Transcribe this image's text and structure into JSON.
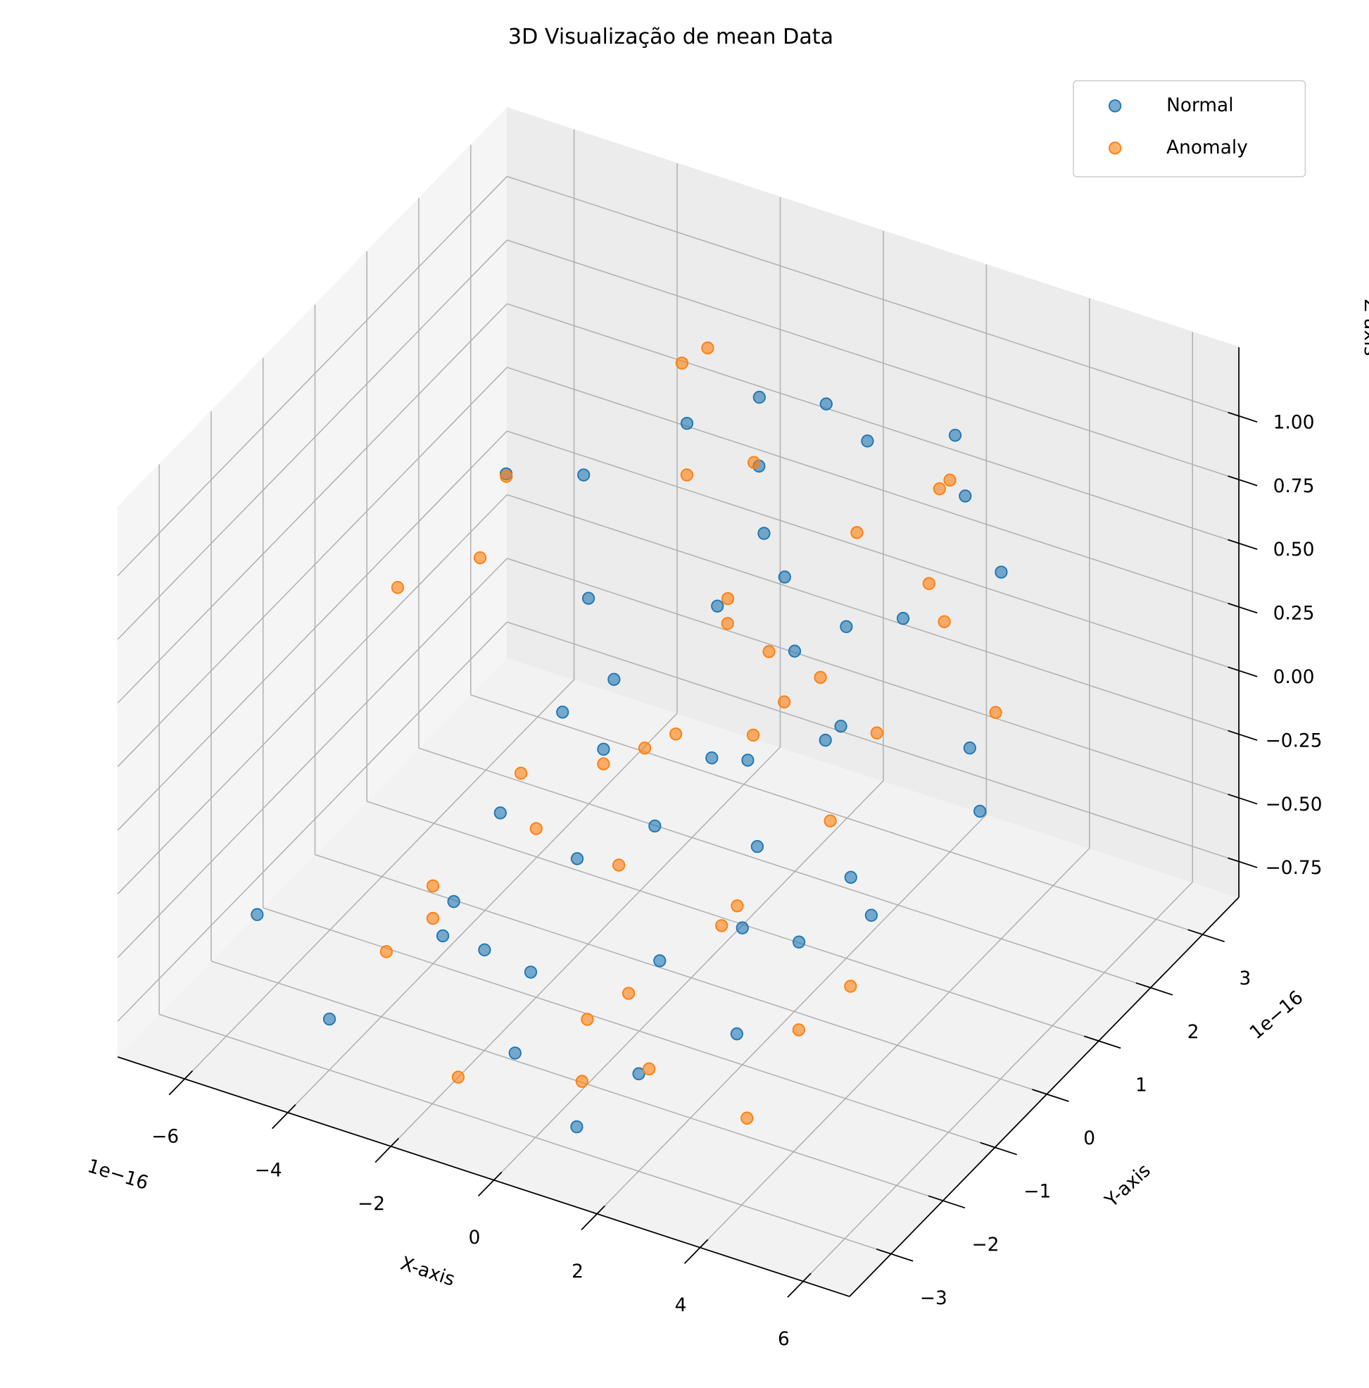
{
  "chart_data": {
    "type": "scatter3d",
    "title": "3D Visualização de mean Data",
    "xlabel": "X-axis",
    "ylabel": "Y-axis",
    "zlabel": "Z-axis",
    "x_offset": "1e−16",
    "y_offset": "1e−16",
    "xlim": [
      -7.3,
      6.9
    ],
    "ylim": [
      -3.8,
      3.7
    ],
    "zlim": [
      -0.89,
      1.27
    ],
    "xticks": [
      {
        "value": -6,
        "label": "−6"
      },
      {
        "value": -4,
        "label": "−4"
      },
      {
        "value": -2,
        "label": "−2"
      },
      0,
      2,
      4,
      6
    ],
    "yticks": [
      {
        "value": -3,
        "label": "−3"
      },
      {
        "value": -2,
        "label": "−2"
      },
      {
        "value": -1,
        "label": "−1"
      },
      0,
      1,
      2,
      3
    ],
    "zticks": [
      {
        "value": -0.75,
        "label": "−0.75"
      },
      {
        "value": -0.5,
        "label": "−0.50"
      },
      {
        "value": -0.25,
        "label": "−0.25"
      },
      {
        "value": 0,
        "label": "0.00"
      },
      {
        "value": 0.25,
        "label": "0.25"
      },
      {
        "value": 0.5,
        "label": "0.50"
      },
      {
        "value": 0.75,
        "label": "0.75"
      },
      {
        "value": 1,
        "label": "1.00"
      }
    ],
    "grid": true,
    "legend": "upper right",
    "series": [
      {
        "name": "Normal",
        "color": "#1f77b4",
        "x": [
          -3.9,
          -3.2,
          -2.5,
          -1.8,
          -1.2,
          -0.6,
          0.1,
          0.7,
          1.3,
          2.0,
          2.6,
          3.3,
          4.0,
          -4.4,
          -2.9,
          -1.5,
          -0.3,
          0.9,
          2.2,
          3.5,
          4.6,
          -3.6,
          -2.1,
          -0.9,
          0.4,
          1.7,
          2.9,
          4.2,
          -5.5,
          -1.0,
          0.0,
          1.0,
          -2.6,
          3.0,
          5.4,
          -4.8,
          1.9,
          -0.5,
          2.5,
          -1.7,
          0.6,
          3.8,
          -3.0,
          1.4,
          -0.1
        ],
        "y": [
          1.8,
          -0.5,
          2.4,
          0.3,
          -1.9,
          1.1,
          -0.8,
          2.7,
          -2.3,
          0.6,
          1.5,
          -1.2,
          2.0,
          -2.6,
          0.9,
          -0.2,
          1.7,
          -1.5,
          2.9,
          -0.4,
          0.8,
          -1.0,
          -2.7,
          2.2,
          0.0,
          1.3,
          -2.0,
          -0.7,
          -2.9,
          -2.4,
          2.6,
          1.0,
          -1.4,
          2.3,
          0.2,
          1.2,
          -0.9,
          -1.7,
          0.4,
          3.0,
          -2.8,
          -2.5,
          0.5,
          -0.3,
          1.9
        ],
        "z": [
          0.45,
          -0.35,
          0.62,
          0.1,
          -0.55,
          0.3,
          -0.12,
          0.7,
          -0.7,
          0.05,
          0.38,
          -0.28,
          0.55,
          -0.8,
          0.22,
          -0.05,
          0.48,
          -0.45,
          0.78,
          -0.18,
          0.15,
          -0.62,
          -0.3,
          0.6,
          0.0,
          0.33,
          -0.5,
          -0.22,
          -0.4,
          -0.75,
          0.82,
          0.25,
          -0.66,
          0.72,
          0.08,
          0.52,
          -0.38,
          -0.1,
          0.18,
          0.65,
          -0.85,
          0.4,
          -0.15,
          0.12,
          0.28
        ]
      },
      {
        "name": "Anomaly",
        "color": "#ff7f0e",
        "x": [
          -4.6,
          -3.4,
          -2.2,
          -1.4,
          -0.7,
          0.2,
          1.1,
          1.8,
          2.7,
          3.6,
          -3.0,
          -1.9,
          -0.4,
          0.8,
          2.3,
          3.2,
          4.4,
          -5.2,
          -2.7,
          -1.1,
          0.5,
          1.5,
          2.9,
          -3.8,
          -0.2,
          1.2,
          3.9,
          -1.6,
          0.3,
          2.0,
          -6.3,
          -2.4,
          -0.8,
          1.6,
          4.8,
          -3.3,
          0.9,
          2.4,
          -0.6,
          3.4
        ],
        "y": [
          0.5,
          -1.6,
          2.1,
          -0.3,
          1.4,
          -2.2,
          0.7,
          -0.9,
          1.9,
          -2.5,
          2.8,
          -1.1,
          0.1,
          -2.0,
          2.5,
          0.4,
          -1.3,
          1.6,
          -0.6,
          2.3,
          -2.6,
          1.0,
          -0.2,
          -2.1,
          0.9,
          2.0,
          -1.8,
          -2.9,
          1.2,
          -1.4,
          0.6,
          2.7,
          -0.1,
          -2.4,
          1.1,
          -1.7,
          0.3,
          2.6,
          -0.8,
          1.5
        ],
        "z": [
          0.35,
          -0.42,
          0.5,
          -0.08,
          0.26,
          -0.58,
          0.12,
          -0.3,
          0.44,
          -0.68,
          0.74,
          -0.2,
          0.02,
          -0.48,
          0.66,
          0.2,
          -0.36,
          0.4,
          -0.14,
          0.58,
          -0.72,
          0.18,
          -0.04,
          -0.6,
          0.3,
          0.52,
          -0.46,
          -0.78,
          0.16,
          -0.26,
          0.1,
          0.86,
          -0.02,
          -0.64,
          0.24,
          -0.52,
          0.06,
          0.68,
          -0.32,
          0.42
        ]
      }
    ]
  }
}
